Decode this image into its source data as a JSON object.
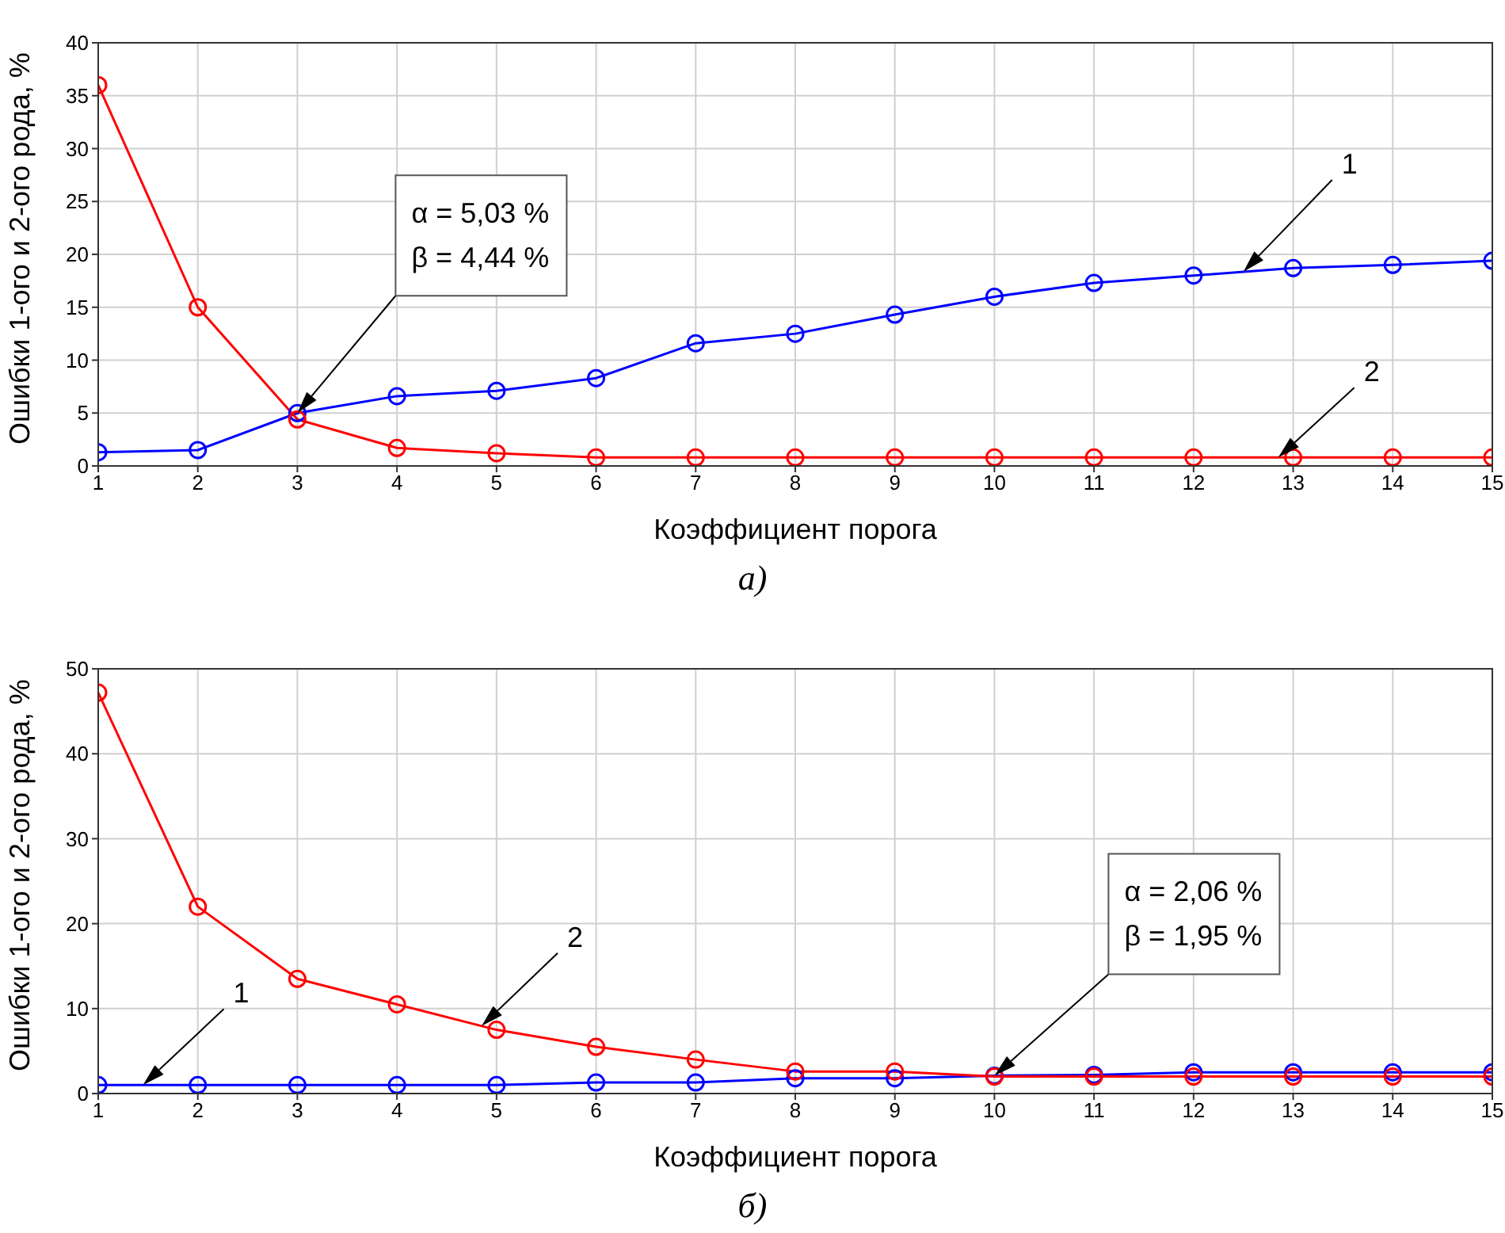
{
  "chart_data": [
    {
      "type": "line",
      "xlabel": "Коэффициент порога",
      "ylabel": "Ошибки 1-ого и 2-ого рода, %",
      "x": [
        1,
        2,
        3,
        4,
        5,
        6,
        7,
        8,
        9,
        10,
        11,
        12,
        13,
        14,
        15
      ],
      "series": [
        {
          "name": "1",
          "color": "#0000ff",
          "values": [
            1.3,
            1.5,
            5.0,
            6.6,
            7.1,
            8.3,
            11.6,
            12.5,
            14.3,
            16.0,
            17.3,
            18.0,
            18.7,
            19.0,
            19.4
          ]
        },
        {
          "name": "2",
          "color": "#ff0000",
          "values": [
            36,
            15,
            4.4,
            1.7,
            1.2,
            0.8,
            0.8,
            0.8,
            0.8,
            0.8,
            0.8,
            0.8,
            0.8,
            0.8,
            0.8
          ]
        }
      ],
      "xlim": [
        1,
        15
      ],
      "xticks": [
        1,
        2,
        3,
        4,
        5,
        6,
        7,
        8,
        9,
        10,
        11,
        12,
        13,
        14,
        15
      ],
      "ylim": [
        0,
        40
      ],
      "yticks": [
        0,
        5,
        10,
        15,
        20,
        25,
        30,
        35,
        40
      ],
      "grid": true,
      "marker": "circle",
      "annotations": [
        "α = 5,03 %\nβ = 4,44 %",
        "а)"
      ]
    },
    {
      "type": "line",
      "xlabel": "Коэффициент порога",
      "ylabel": "Ошибки 1-ого и 2-ого рода, %",
      "x": [
        1,
        2,
        3,
        4,
        5,
        6,
        7,
        8,
        9,
        10,
        11,
        12,
        13,
        14,
        15
      ],
      "series": [
        {
          "name": "1",
          "color": "#0000ff",
          "values": [
            1,
            1,
            1,
            1,
            1,
            1.3,
            1.3,
            1.8,
            1.8,
            2.1,
            2.2,
            2.5,
            2.5,
            2.5,
            2.5
          ]
        },
        {
          "name": "2",
          "color": "#ff0000",
          "values": [
            47.2,
            22,
            13.5,
            10.5,
            7.5,
            5.5,
            4,
            2.6,
            2.6,
            2,
            2,
            2,
            2,
            2,
            2
          ]
        }
      ],
      "xlim": [
        1,
        15
      ],
      "xticks": [
        1,
        2,
        3,
        4,
        5,
        6,
        7,
        8,
        9,
        10,
        11,
        12,
        13,
        14,
        15
      ],
      "ylim": [
        0,
        50
      ],
      "yticks": [
        0,
        10,
        20,
        30,
        40,
        50
      ],
      "grid": true,
      "marker": "circle",
      "annotations": [
        "α = 2,06 %\nβ = 1,95 %",
        "б)"
      ]
    }
  ]
}
